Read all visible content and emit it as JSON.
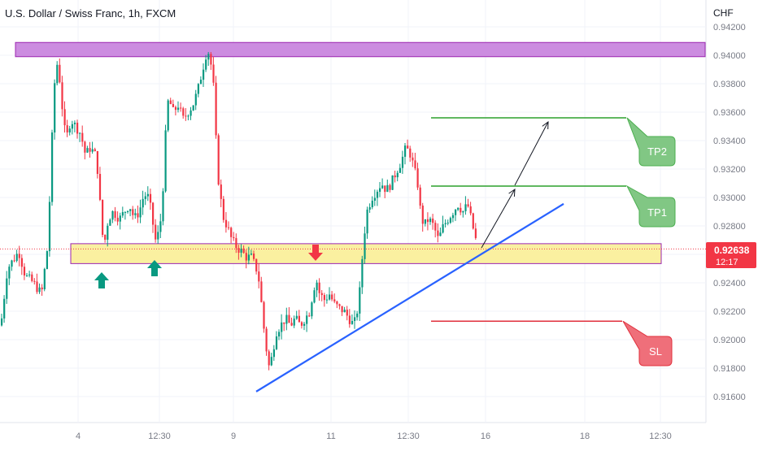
{
  "header": {
    "title": "U.S. Dollar / Swiss Franc, 1h, FXCM",
    "currency": "CHF"
  },
  "chart_data": {
    "type": "candlestick",
    "title": "U.S. Dollar / Swiss Franc, 1h, FXCM",
    "yunit": "CHF",
    "ylim": [
      0.9155,
      0.9425
    ],
    "y_ticks": [
      "0.94200",
      "0.94000",
      "0.93800",
      "0.93600",
      "0.93400",
      "0.93200",
      "0.93000",
      "0.92800",
      "0.92600",
      "0.92400",
      "0.92200",
      "0.92000",
      "0.91800",
      "0.91600"
    ],
    "x_ticks": [
      "4",
      "12:30",
      "9",
      "11",
      "12:30",
      "16",
      "18",
      "12:30"
    ],
    "current_price": "0.92638",
    "countdown": "12:17",
    "colors": {
      "up": "#089981",
      "down": "#f23645",
      "zone_resistance": "#cc8ce0",
      "zone_support": "#faf0a0",
      "trendline": "#2962ff",
      "tp": "#2ca02c",
      "sl": "#e0303c"
    },
    "path": [
      [
        0,
        0.921
      ],
      [
        8,
        0.925
      ],
      [
        22,
        0.9262
      ],
      [
        30,
        0.9245
      ],
      [
        40,
        0.924
      ],
      [
        50,
        0.9232
      ],
      [
        58,
        0.9268
      ],
      [
        62,
        0.933
      ],
      [
        66,
        0.938
      ],
      [
        70,
        0.9397
      ],
      [
        76,
        0.936
      ],
      [
        80,
        0.934
      ],
      [
        86,
        0.9355
      ],
      [
        92,
        0.935
      ],
      [
        98,
        0.9345
      ],
      [
        104,
        0.933
      ],
      [
        110,
        0.9335
      ],
      [
        116,
        0.933
      ],
      [
        120,
        0.9315
      ],
      [
        124,
        0.9275
      ],
      [
        128,
        0.927
      ],
      [
        132,
        0.9285
      ],
      [
        138,
        0.929
      ],
      [
        146,
        0.9285
      ],
      [
        152,
        0.929
      ],
      [
        158,
        0.9295
      ],
      [
        164,
        0.9285
      ],
      [
        170,
        0.929
      ],
      [
        176,
        0.9302
      ],
      [
        182,
        0.93
      ],
      [
        186,
        0.9285
      ],
      [
        190,
        0.927
      ],
      [
        194,
        0.9275
      ],
      [
        198,
        0.929
      ],
      [
        202,
        0.934
      ],
      [
        206,
        0.937
      ],
      [
        212,
        0.936
      ],
      [
        218,
        0.9365
      ],
      [
        224,
        0.9355
      ],
      [
        230,
        0.936
      ],
      [
        236,
        0.9365
      ],
      [
        242,
        0.9375
      ],
      [
        248,
        0.939
      ],
      [
        254,
        0.9405
      ],
      [
        258,
        0.9395
      ],
      [
        262,
        0.9375
      ],
      [
        266,
        0.932
      ],
      [
        270,
        0.93
      ],
      [
        274,
        0.9285
      ],
      [
        278,
        0.928
      ],
      [
        284,
        0.927
      ],
      [
        290,
        0.9265
      ],
      [
        296,
        0.9262
      ],
      [
        302,
        0.9258
      ],
      [
        308,
        0.9258
      ],
      [
        314,
        0.925
      ],
      [
        318,
        0.924
      ],
      [
        322,
        0.9215
      ],
      [
        326,
        0.9195
      ],
      [
        330,
        0.918
      ],
      [
        334,
        0.919
      ],
      [
        338,
        0.9205
      ],
      [
        344,
        0.921
      ],
      [
        350,
        0.9215
      ],
      [
        356,
        0.921
      ],
      [
        362,
        0.9215
      ],
      [
        368,
        0.921
      ],
      [
        374,
        0.9215
      ],
      [
        380,
        0.922
      ],
      [
        384,
        0.9235
      ],
      [
        388,
        0.9242
      ],
      [
        392,
        0.9232
      ],
      [
        398,
        0.9228
      ],
      [
        404,
        0.9232
      ],
      [
        410,
        0.9225
      ],
      [
        416,
        0.9222
      ],
      [
        422,
        0.922
      ],
      [
        428,
        0.9215
      ],
      [
        434,
        0.921
      ],
      [
        440,
        0.9225
      ],
      [
        446,
        0.927
      ],
      [
        450,
        0.929
      ],
      [
        456,
        0.93
      ],
      [
        462,
        0.9305
      ],
      [
        468,
        0.931
      ],
      [
        474,
        0.9305
      ],
      [
        480,
        0.931
      ],
      [
        486,
        0.9318
      ],
      [
        492,
        0.9325
      ],
      [
        498,
        0.9335
      ],
      [
        504,
        0.933
      ],
      [
        508,
        0.932
      ],
      [
        512,
        0.9312
      ],
      [
        516,
        0.929
      ],
      [
        520,
        0.928
      ],
      [
        526,
        0.9285
      ],
      [
        532,
        0.928
      ],
      [
        538,
        0.927
      ],
      [
        544,
        0.928
      ],
      [
        550,
        0.9285
      ],
      [
        556,
        0.929
      ],
      [
        562,
        0.9295
      ],
      [
        568,
        0.929
      ],
      [
        574,
        0.9295
      ],
      [
        580,
        0.928
      ],
      [
        586,
        0.9265
      ]
    ],
    "annotations": {
      "resistance_zone": [
        0.9399,
        0.9409
      ],
      "support_zone": [
        0.92535,
        0.92675
      ],
      "tp1": {
        "label": "TP1",
        "price": 0.9308
      },
      "tp2": {
        "label": "TP2",
        "price": 0.9356
      },
      "sl": {
        "label": "SL",
        "price": 0.9213
      },
      "up_arrows": 2,
      "down_arrows": 1
    }
  }
}
